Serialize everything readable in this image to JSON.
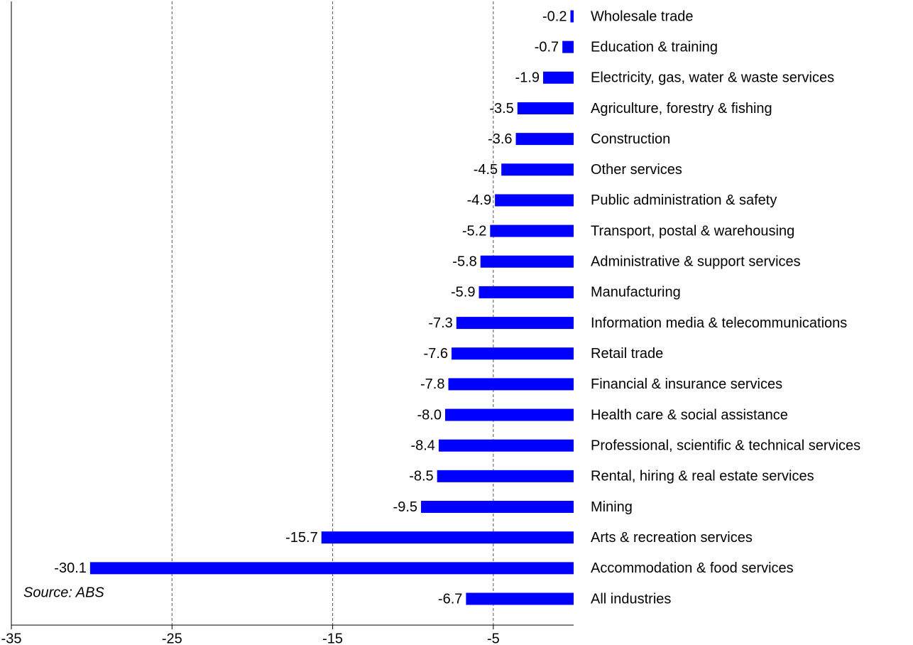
{
  "chart_data": {
    "type": "bar",
    "orientation": "horizontal",
    "categories": [
      "Wholesale trade",
      "Education & training",
      "Electricity, gas, water & waste services",
      "Agriculture, forestry & fishing",
      "Construction",
      "Other services",
      "Public administration & safety",
      "Transport, postal & warehousing",
      "Administrative & support services",
      "Manufacturing",
      "Information media & telecommunications",
      "Retail trade",
      "Financial & insurance services",
      "Health care & social assistance",
      "Professional, scientific & technical services",
      "Rental, hiring & real estate services",
      "Mining",
      "Arts & recreation services",
      "Accommodation & food services",
      "All industries"
    ],
    "values": [
      -0.2,
      -0.7,
      -1.9,
      -3.5,
      -3.6,
      -4.5,
      -4.9,
      -5.2,
      -5.8,
      -5.9,
      -7.3,
      -7.6,
      -7.8,
      -8.0,
      -8.4,
      -8.5,
      -9.5,
      -15.7,
      -30.1,
      -6.7
    ],
    "value_labels": [
      "-0.2",
      "-0.7",
      "-1.9",
      "-3.5",
      "-3.6",
      "-4.5",
      "-4.9",
      "-5.2",
      "-5.8",
      "-5.9",
      "-7.3",
      "-7.6",
      "-7.8",
      "-8.0",
      "-8.4",
      "-8.5",
      "-9.5",
      "-15.7",
      "-30.1",
      "-6.7"
    ],
    "color": "#0000ff",
    "xlim": [
      -35,
      0
    ],
    "xticks": [
      -35,
      -25,
      -15,
      -5
    ],
    "grid": true,
    "annotation": "Source: ABS"
  }
}
